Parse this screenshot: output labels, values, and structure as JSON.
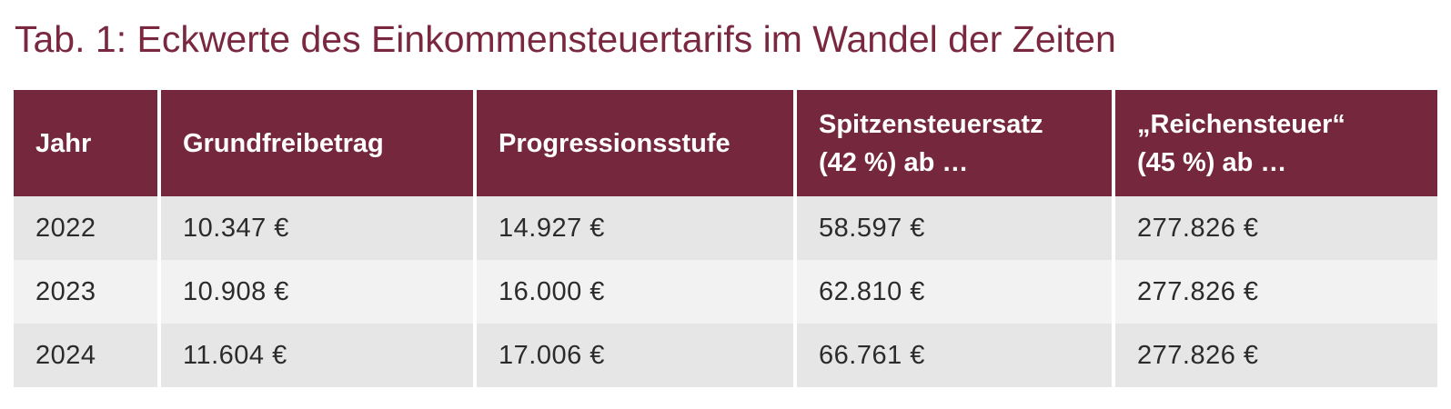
{
  "title": "Tab. 1: Eckwerte des Einkommensteuertarifs im Wandel der Zeiten",
  "table": {
    "headers": [
      {
        "line1": "Jahr",
        "line2": ""
      },
      {
        "line1": "Grundfreibetrag",
        "line2": ""
      },
      {
        "line1": "Progressionsstufe",
        "line2": ""
      },
      {
        "line1": "Spitzensteuersatz",
        "line2": "(42 %) ab …"
      },
      {
        "line1": "„Reichensteuer“",
        "line2": "(45 %) ab …"
      }
    ],
    "rows": [
      [
        "2022",
        "10.347 €",
        "14.927 €",
        "58.597 €",
        "277.826 €"
      ],
      [
        "2023",
        "10.908 €",
        "16.000 €",
        "62.810 €",
        "277.826 €"
      ],
      [
        "2024",
        "11.604 €",
        "17.006 €",
        "66.761 €",
        "277.826 €"
      ]
    ]
  },
  "colors": {
    "header_bg": "#74273d",
    "title_text": "#7a2840",
    "row_odd_bg": "#e6e6e6",
    "row_even_bg": "#f2f2f2"
  }
}
